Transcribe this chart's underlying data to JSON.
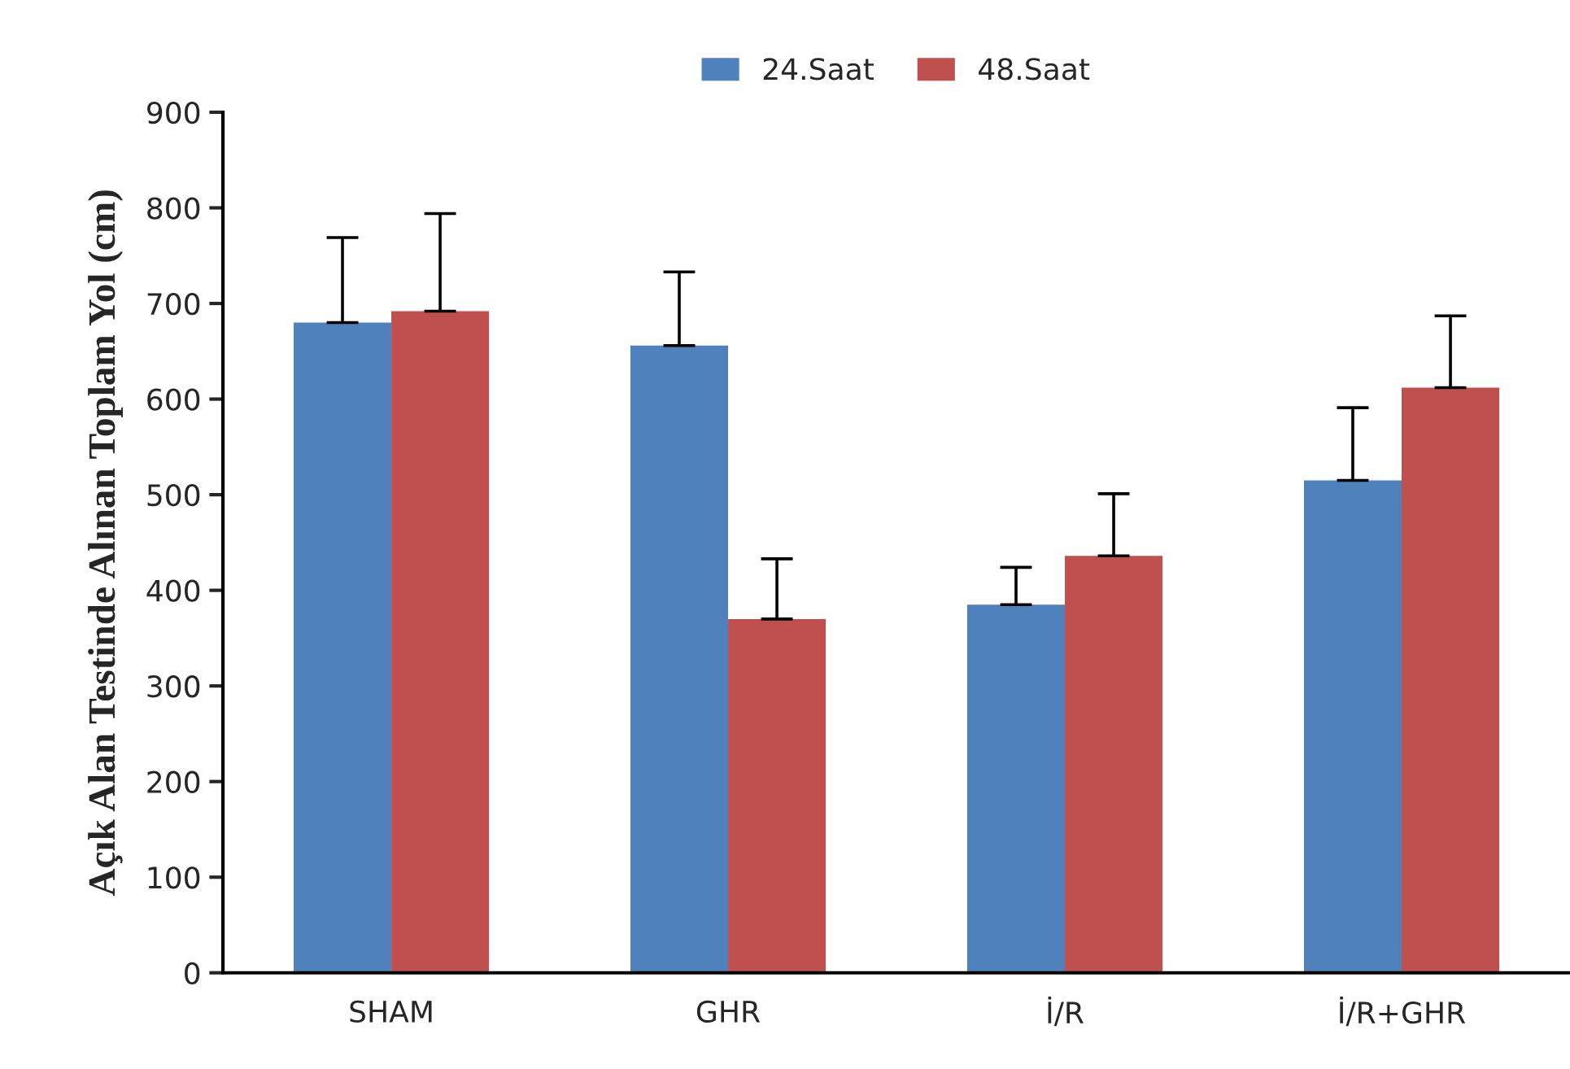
{
  "chart_data": {
    "type": "bar",
    "ylabel": "Açık Alan Testinde Alınan Toplam Yol (cm)",
    "categories": [
      "SHAM",
      "GHR",
      "İ/R",
      "İ/R+GHR"
    ],
    "series": [
      {
        "name": "24.Saat",
        "color": "#4f81bd",
        "values": [
          680,
          656,
          385,
          515
        ],
        "errors": [
          [
            680,
            769
          ],
          [
            656,
            733
          ],
          [
            385,
            424
          ],
          [
            515,
            591
          ]
        ]
      },
      {
        "name": "48.Saat",
        "color": "#c0504d",
        "values": [
          692,
          370,
          436,
          612
        ],
        "errors": [
          [
            692,
            794
          ],
          [
            370,
            433
          ],
          [
            436,
            501
          ],
          [
            612,
            687
          ]
        ]
      }
    ],
    "ylim": [
      0,
      900
    ],
    "yticks": [
      0,
      100,
      200,
      300,
      400,
      500,
      600,
      700,
      800,
      900
    ],
    "grid": false,
    "legend": "top"
  }
}
